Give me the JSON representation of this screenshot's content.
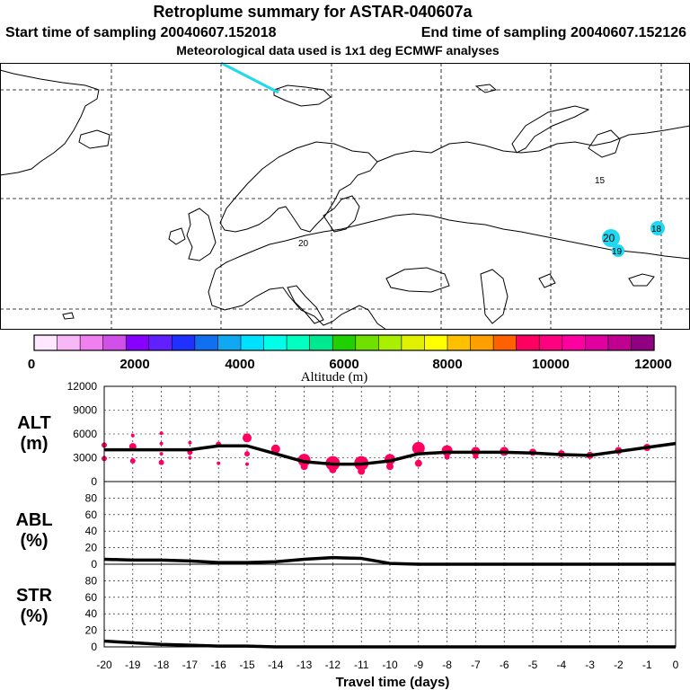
{
  "title": "Retroplume summary for ASTAR-040607a",
  "subtitle_start": "Start time of sampling 20040607.152018",
  "subtitle_end": "End time of sampling 20040607.152126",
  "subtitle_met": "Meteorological data used is 1x1 deg ECMWF analyses",
  "colorbar": {
    "label": "Altitude (m)",
    "ticks": [
      "0",
      "2000",
      "4000",
      "6000",
      "8000",
      "10000",
      "12000"
    ],
    "colors": [
      "#ffe8ff",
      "#f8b8f8",
      "#f080f0",
      "#d050e8",
      "#8800ff",
      "#6020ff",
      "#2030ff",
      "#1070f0",
      "#10a8f0",
      "#00e0ff",
      "#00ffe8",
      "#00ffc0",
      "#00e890",
      "#20d000",
      "#70e000",
      "#a8f000",
      "#e0f000",
      "#ffff00",
      "#ffc000",
      "#ffa000",
      "#ff6000",
      "#ff0060",
      "#ff0080",
      "#ff00a0",
      "#e000a0",
      "#c00090",
      "#900080"
    ]
  },
  "map": {
    "labels": [
      {
        "text": "15",
        "color": "#000000"
      },
      {
        "text": "20",
        "color": "#000000"
      },
      {
        "text": "20",
        "color": "#000000"
      },
      {
        "text": "18",
        "color": "#000000"
      },
      {
        "text": "19",
        "color": "#000000"
      }
    ],
    "marker_color": "#20d8f0",
    "trajectory_color": "#20d8f0"
  },
  "chart_data": {
    "type": "line",
    "xlabel": "Travel time (days)",
    "x": [
      -20,
      -19,
      -18,
      -17,
      -16,
      -15,
      -14,
      -13,
      -12,
      -11,
      -10,
      -9,
      -8,
      -7,
      -6,
      -5,
      -4,
      -3,
      -2,
      -1,
      0
    ],
    "xticks": [
      "-20",
      "-19",
      "-18",
      "-17",
      "-16",
      "-15",
      "-14",
      "-13",
      "-12",
      "-11",
      "-10",
      "-9",
      "-8",
      "-7",
      "-6",
      "-5",
      "-4",
      "-3",
      "-2",
      "-1",
      "0"
    ],
    "xlim": [
      -20,
      0
    ],
    "panels": [
      {
        "name": "ALT",
        "ylabel_line1": "ALT",
        "ylabel_line2": "(m)",
        "ylim": [
          0,
          12000
        ],
        "yticks": [
          "0",
          "3000",
          "6000",
          "9000",
          "12000"
        ],
        "series": [
          {
            "name": "mean altitude",
            "values": [
              4000,
              4000,
              4000,
              4000,
              4500,
              4500,
              3500,
              2500,
              2200,
              2200,
              2600,
              3500,
              3700,
              3700,
              3700,
              3600,
              3400,
              3300,
              3800,
              4300,
              4800
            ]
          }
        ],
        "scatter": [
          {
            "x": -20,
            "y": 4600,
            "size": 3
          },
          {
            "x": -20,
            "y": 2900,
            "size": 3
          },
          {
            "x": -19,
            "y": 5800,
            "size": 2
          },
          {
            "x": -19,
            "y": 4400,
            "size": 4
          },
          {
            "x": -19,
            "y": 2600,
            "size": 3
          },
          {
            "x": -18,
            "y": 6100,
            "size": 2
          },
          {
            "x": -18,
            "y": 4800,
            "size": 2
          },
          {
            "x": -18,
            "y": 3500,
            "size": 2
          },
          {
            "x": -18,
            "y": 2400,
            "size": 3
          },
          {
            "x": -17,
            "y": 4900,
            "size": 2
          },
          {
            "x": -17,
            "y": 3700,
            "size": 3
          },
          {
            "x": -17,
            "y": 3000,
            "size": 2
          },
          {
            "x": -16,
            "y": 4700,
            "size": 3
          },
          {
            "x": -16,
            "y": 2300,
            "size": 2
          },
          {
            "x": -15,
            "y": 5500,
            "size": 5
          },
          {
            "x": -15,
            "y": 3500,
            "size": 3
          },
          {
            "x": -15,
            "y": 2200,
            "size": 2
          },
          {
            "x": -14,
            "y": 4100,
            "size": 5
          },
          {
            "x": -13,
            "y": 2700,
            "size": 7
          },
          {
            "x": -13,
            "y": 1900,
            "size": 4
          },
          {
            "x": -12,
            "y": 2300,
            "size": 8
          },
          {
            "x": -12,
            "y": 1500,
            "size": 4
          },
          {
            "x": -11,
            "y": 2300,
            "size": 8
          },
          {
            "x": -11,
            "y": 1300,
            "size": 4
          },
          {
            "x": -10,
            "y": 2800,
            "size": 6
          },
          {
            "x": -10,
            "y": 1900,
            "size": 4
          },
          {
            "x": -9,
            "y": 4200,
            "size": 7
          },
          {
            "x": -9,
            "y": 2300,
            "size": 4
          },
          {
            "x": -8,
            "y": 3900,
            "size": 6
          },
          {
            "x": -8,
            "y": 3100,
            "size": 3
          },
          {
            "x": -7,
            "y": 3800,
            "size": 5
          },
          {
            "x": -7,
            "y": 3200,
            "size": 3
          },
          {
            "x": -6,
            "y": 3800,
            "size": 5
          },
          {
            "x": -5,
            "y": 3700,
            "size": 4
          },
          {
            "x": -4,
            "y": 3500,
            "size": 4
          },
          {
            "x": -3,
            "y": 3300,
            "size": 4
          },
          {
            "x": -2,
            "y": 3900,
            "size": 4
          },
          {
            "x": -1,
            "y": 4300,
            "size": 4
          }
        ],
        "scatter_color": "#ff0060"
      },
      {
        "name": "ABL",
        "ylabel_line1": "ABL",
        "ylabel_line2": "(%)",
        "ylim": [
          0,
          100
        ],
        "yticks": [
          "0",
          "20",
          "40",
          "60",
          "80"
        ],
        "series": [
          {
            "name": "fraction in ABL",
            "values": [
              6,
              5,
              5,
              4,
              2,
              2,
              3,
              6,
              8,
              7,
              1,
              0,
              0,
              0,
              0,
              0,
              0,
              0,
              0,
              0,
              0
            ]
          }
        ]
      },
      {
        "name": "STR",
        "ylabel_line1": "STR",
        "ylabel_line2": "(%)",
        "ylim": [
          0,
          100
        ],
        "yticks": [
          "0",
          "20",
          "40",
          "60",
          "80"
        ],
        "series": [
          {
            "name": "fraction in stratosphere",
            "values": [
              7,
              5,
              3,
              2,
              1,
              1,
              0,
              0,
              0,
              0,
              0,
              0,
              0,
              0,
              0,
              0,
              0,
              0,
              0,
              0,
              0
            ]
          }
        ]
      }
    ]
  }
}
